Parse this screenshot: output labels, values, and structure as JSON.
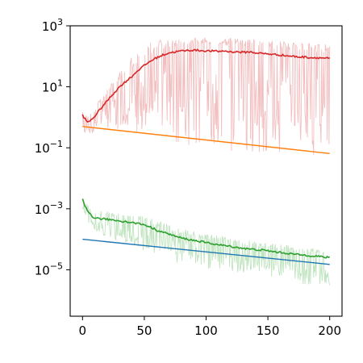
{
  "chart_data": {
    "type": "line",
    "title": "",
    "xlabel": "",
    "ylabel": "",
    "xlim": [
      -10,
      210
    ],
    "ylim": [
      3e-07,
      1000
    ],
    "y_scale": "log",
    "grid": false,
    "legend": "none",
    "x_ticks": [
      {
        "value": 0,
        "label": "0"
      },
      {
        "value": 50,
        "label": "50"
      },
      {
        "value": 100,
        "label": "100"
      },
      {
        "value": 150,
        "label": "150"
      },
      {
        "value": 200,
        "label": "200"
      }
    ],
    "y_ticks": [
      {
        "value": 1000,
        "base": "10",
        "exp": "3"
      },
      {
        "value": 10,
        "base": "10",
        "exp": "1"
      },
      {
        "value": 0.1,
        "base": "10",
        "exp": "−1"
      },
      {
        "value": 0.001,
        "base": "10",
        "exp": "−3"
      },
      {
        "value": 1e-05,
        "base": "10",
        "exp": "−5"
      }
    ],
    "series": [
      {
        "color": "#d62728",
        "band_color": "#f0b4b5",
        "x": [
          0,
          3,
          5,
          8,
          10,
          15,
          20,
          25,
          30,
          35,
          40,
          45,
          50,
          55,
          60,
          65,
          70,
          75,
          80,
          85,
          90,
          95,
          100,
          105,
          110,
          115,
          120,
          125,
          130,
          135,
          140,
          145,
          150,
          155,
          160,
          165,
          170,
          175,
          180,
          185,
          190,
          195,
          200
        ],
        "y": [
          1.2,
          0.75,
          0.7,
          0.9,
          1.1,
          2.0,
          3.5,
          6.0,
          10,
          15,
          22,
          35,
          50,
          70,
          90,
          110,
          130,
          140,
          150,
          155,
          160,
          155,
          150,
          150,
          145,
          150,
          140,
          140,
          135,
          140,
          130,
          125,
          120,
          115,
          110,
          105,
          100,
          95,
          95,
          90,
          90,
          88,
          85
        ],
        "band_low": [
          0.3,
          0.28,
          0.3,
          0.3,
          0.35,
          0.4,
          0.45,
          0.45,
          0.4,
          0.35,
          0.3,
          0.3,
          0.25,
          0.2,
          0.2,
          0.2,
          0.15,
          0.15,
          0.15,
          0.12,
          0.1,
          0.1,
          0.1,
          0.08,
          0.08,
          0.08,
          0.07,
          0.07,
          0.07,
          0.06,
          0.06,
          0.06,
          0.06,
          0.05,
          0.05,
          0.05,
          0.05,
          0.05,
          0.05,
          0.05,
          0.05,
          0.05,
          0.05
        ],
        "band_high": [
          1.5,
          1.2,
          1.3,
          1.8,
          2.5,
          5,
          10,
          20,
          35,
          60,
          100,
          150,
          200,
          280,
          330,
          360,
          380,
          400,
          420,
          430,
          440,
          420,
          420,
          410,
          400,
          400,
          390,
          380,
          370,
          370,
          360,
          350,
          340,
          330,
          320,
          310,
          300,
          290,
          280,
          280,
          270,
          260,
          250
        ]
      },
      {
        "color": "#ff7f0e",
        "x": [
          0,
          200
        ],
        "y": [
          0.5,
          0.065
        ]
      },
      {
        "color": "#2ca02c",
        "band_color": "#b5dfb5",
        "x": [
          0,
          2,
          4,
          6,
          8,
          10,
          15,
          20,
          25,
          30,
          35,
          40,
          45,
          50,
          55,
          60,
          65,
          70,
          75,
          80,
          85,
          90,
          95,
          100,
          105,
          110,
          115,
          120,
          125,
          130,
          135,
          140,
          145,
          150,
          155,
          160,
          165,
          170,
          175,
          180,
          185,
          190,
          195,
          200
        ],
        "y": [
          0.002,
          0.0012,
          0.00085,
          0.0007,
          0.00055,
          0.0005,
          0.00047,
          0.00045,
          0.00043,
          0.0004,
          0.00038,
          0.00035,
          0.00033,
          0.0003,
          0.00025,
          0.0002,
          0.00017,
          0.00015,
          0.000125,
          0.00011,
          0.0001,
          9.2e-05,
          8.5e-05,
          7.8e-05,
          7.2e-05,
          6.6e-05,
          6.2e-05,
          5.8e-05,
          5.4e-05,
          5.1e-05,
          4.8e-05,
          4.6e-05,
          4.4e-05,
          4.2e-05,
          3.9e-05,
          3.7e-05,
          3.5e-05,
          3.3e-05,
          3.1e-05,
          3e-05,
          2.9e-05,
          2.8e-05,
          2.6e-05,
          2.5e-05
        ],
        "band_low": [
          0.001,
          0.0006,
          0.0004,
          0.0003,
          0.00025,
          0.0002,
          0.00015,
          0.00012,
          0.0001,
          8e-05,
          7e-05,
          6e-05,
          5e-05,
          4e-05,
          3.5e-05,
          3e-05,
          2.5e-05,
          2e-05,
          1.8e-05,
          1.6e-05,
          1.5e-05,
          1.3e-05,
          1.2e-05,
          1.1e-05,
          1e-05,
          9.5e-06,
          9e-06,
          8.5e-06,
          8e-06,
          7.5e-06,
          7e-06,
          6.5e-06,
          6e-06,
          5.5e-06,
          5e-06,
          4.5e-06,
          4e-06,
          3.5e-06,
          3.2e-06,
          3e-06,
          3e-06,
          3e-06,
          3e-06,
          3e-06
        ],
        "band_high": [
          0.0025,
          0.0018,
          0.0013,
          0.0011,
          0.001,
          0.0009,
          0.00085,
          0.0008,
          0.00075,
          0.0007,
          0.00068,
          0.00065,
          0.0006,
          0.00055,
          0.0005,
          0.00042,
          0.00036,
          0.0003,
          0.00026,
          0.00022,
          0.0002,
          0.00018,
          0.00016,
          0.00015,
          0.00014,
          0.00013,
          0.00012,
          0.00011,
          0.0001,
          9.5e-05,
          9e-05,
          8.5e-05,
          8e-05,
          7.5e-05,
          7e-05,
          6.8e-05,
          6.5e-05,
          6e-05,
          5.8e-05,
          5.5e-05,
          5.2e-05,
          5e-05,
          4.8e-05,
          4.5e-05
        ]
      },
      {
        "color": "#1f77b4",
        "x": [
          0,
          200
        ],
        "y": [
          0.0001,
          1.5e-05
        ]
      }
    ]
  }
}
